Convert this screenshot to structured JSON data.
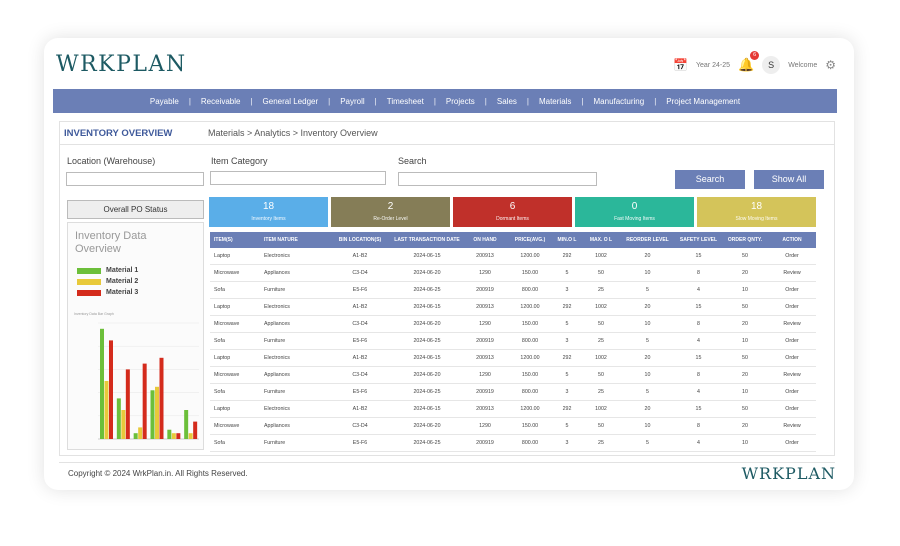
{
  "app": {
    "logo": "WRKPLAN"
  },
  "header": {
    "year": "Year 24-25",
    "notifications": "6",
    "avatar_initial": "S",
    "welcome": "Welcome"
  },
  "nav": [
    "Payable",
    "Receivable",
    "General Ledger",
    "Payroll",
    "Timesheet",
    "Projects",
    "Sales",
    "Materials",
    "Manufacturing",
    "Project Management"
  ],
  "page": {
    "title": "INVENTORY OVERVIEW",
    "breadcrumb": "Materials > Analytics > Inventory Overview"
  },
  "filters": {
    "location_label": "Location (Warehouse)",
    "category_label": "Item Category",
    "search_label": "Search",
    "search_button": "Search",
    "show_all_button": "Show All"
  },
  "po_status": {
    "title": "Overall PO Status"
  },
  "chart_data": {
    "type": "bar",
    "title": "Inventory Data Overview",
    "subtitle": "Inventory Data Bar Graph",
    "series": [
      {
        "name": "Material 1",
        "color": "#6cbf3a",
        "values": [
          95,
          35,
          5,
          42,
          8,
          25
        ]
      },
      {
        "name": "Material 2",
        "color": "#e8c93a",
        "values": [
          50,
          25,
          10,
          45,
          5,
          5
        ]
      },
      {
        "name": "Material 3",
        "color": "#d42b1c",
        "values": [
          85,
          60,
          65,
          70,
          5,
          15
        ]
      }
    ],
    "ylim": [
      0,
      100
    ],
    "legend": "top-left"
  },
  "cards": [
    {
      "value": "18",
      "label": "Inventory Items",
      "color": "#5aaee8"
    },
    {
      "value": "2",
      "label": "Re-Order Level",
      "color": "#857d57"
    },
    {
      "value": "6",
      "label": "Dormant Items",
      "color": "#c0302a"
    },
    {
      "value": "0",
      "label": "Fast Moving Items",
      "color": "#2bb79a"
    },
    {
      "value": "18",
      "label": "Slow Moving Items",
      "color": "#d4c45a"
    }
  ],
  "table": {
    "headers": [
      "ITEM(S)",
      "ITEM NATURE",
      "BIN LOCATION(S)",
      "LAST TRANSACTION DATE",
      "ON HAND",
      "PRICE(AVG.)",
      "MIN.O L",
      "MAX. O L",
      "REORDER LEVEL",
      "SAFETY LEVEL",
      "ORDER QNTY.",
      "ACTION"
    ],
    "rows": [
      [
        "Laptop",
        "Electronics",
        "A1-B2",
        "2024-06-15",
        "200913",
        "1200.00",
        "292",
        "1002",
        "20",
        "15",
        "50",
        "Order"
      ],
      [
        "Microwave",
        "Appliances",
        "C3-D4",
        "2024-06-20",
        "1290",
        "150.00",
        "5",
        "50",
        "10",
        "8",
        "20",
        "Review"
      ],
      [
        "Sofa",
        "Furniture",
        "E5-F6",
        "2024-06-25",
        "200919",
        "800.00",
        "3",
        "25",
        "5",
        "4",
        "10",
        "Order"
      ],
      [
        "Laptop",
        "Electronics",
        "A1-B2",
        "2024-06-15",
        "200913",
        "1200.00",
        "292",
        "1002",
        "20",
        "15",
        "50",
        "Order"
      ],
      [
        "Microwave",
        "Appliances",
        "C3-D4",
        "2024-06-20",
        "1290",
        "150.00",
        "5",
        "50",
        "10",
        "8",
        "20",
        "Review"
      ],
      [
        "Sofa",
        "Furniture",
        "E5-F6",
        "2024-06-25",
        "200919",
        "800.00",
        "3",
        "25",
        "5",
        "4",
        "10",
        "Order"
      ],
      [
        "Laptop",
        "Electronics",
        "A1-B2",
        "2024-06-15",
        "200913",
        "1200.00",
        "292",
        "1002",
        "20",
        "15",
        "50",
        "Order"
      ],
      [
        "Microwave",
        "Appliances",
        "C3-D4",
        "2024-06-20",
        "1290",
        "150.00",
        "5",
        "50",
        "10",
        "8",
        "20",
        "Review"
      ],
      [
        "Sofa",
        "Furniture",
        "E5-F6",
        "2024-06-25",
        "200919",
        "800.00",
        "3",
        "25",
        "5",
        "4",
        "10",
        "Order"
      ],
      [
        "Laptop",
        "Electronics",
        "A1-B2",
        "2024-06-15",
        "200913",
        "1200.00",
        "292",
        "1002",
        "20",
        "15",
        "50",
        "Order"
      ],
      [
        "Microwave",
        "Appliances",
        "C3-D4",
        "2024-06-20",
        "1290",
        "150.00",
        "5",
        "50",
        "10",
        "8",
        "20",
        "Review"
      ],
      [
        "Sofa",
        "Furniture",
        "E5-F6",
        "2024-06-25",
        "200919",
        "800.00",
        "3",
        "25",
        "5",
        "4",
        "10",
        "Order"
      ]
    ]
  },
  "footer": {
    "copyright": "Copyright © 2024 WrkPlan.in. All Rights Reserved.",
    "logo": "WRKPLAN"
  }
}
